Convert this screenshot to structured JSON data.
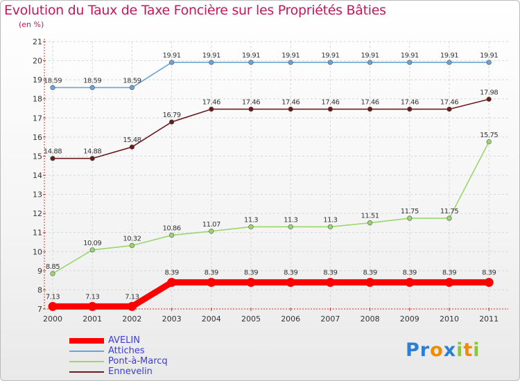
{
  "title": "Evolution du Taux de Taxe Foncière sur les Propriétés Bâties",
  "unit_label": "(en %)",
  "logo": {
    "letters": [
      "P",
      "r",
      "o",
      "x",
      "i",
      "t",
      "i"
    ],
    "colors": [
      "#2a7fd4",
      "#2a7fd4",
      "#f08a00",
      "#2a7fd4",
      "#8cc63f",
      "#f08a00",
      "#8cc63f"
    ]
  },
  "chart_data": {
    "type": "line",
    "x": [
      "2000",
      "2001",
      "2002",
      "2003",
      "2004",
      "2005",
      "2006",
      "2007",
      "2008",
      "2009",
      "2010",
      "2011"
    ],
    "ylim": [
      7,
      21
    ],
    "yticks": [
      7,
      8,
      9,
      10,
      11,
      12,
      13,
      14,
      15,
      16,
      17,
      18,
      19,
      20,
      21
    ],
    "grid": true,
    "legend": "bottom-left",
    "series": [
      {
        "name": "AVELIN",
        "color": "#ff0000",
        "values": [
          7.13,
          7.13,
          7.13,
          8.39,
          8.39,
          8.39,
          8.39,
          8.39,
          8.39,
          8.39,
          8.39,
          8.39
        ],
        "labels": [
          "7.13",
          "7.13",
          "7.13",
          "8.39",
          "8.39",
          "8.39",
          "8.39",
          "8.39",
          "8.39",
          "8.39",
          "8.39",
          "8.39"
        ]
      },
      {
        "name": "Attiches",
        "color": "#6aa3d4",
        "values": [
          18.59,
          18.59,
          18.59,
          19.91,
          19.91,
          19.91,
          19.91,
          19.91,
          19.91,
          19.91,
          19.91,
          19.91
        ],
        "labels": [
          "18.59",
          "18.59",
          "18.59",
          "19.91",
          "19.91",
          "19.91",
          "19.91",
          "19.91",
          "19.91",
          "19.91",
          "19.91",
          "19.91"
        ]
      },
      {
        "name": "Pont-à-Marcq",
        "color": "#9ad66b",
        "values": [
          8.85,
          10.09,
          10.32,
          10.86,
          11.07,
          11.3,
          11.3,
          11.3,
          11.51,
          11.75,
          11.75,
          15.75
        ],
        "labels": [
          "8.85",
          "10.09",
          "10.32",
          "10.86",
          "11.07",
          "11.3",
          "11.3",
          "11.3",
          "11.51",
          "11.75",
          "11.75",
          "15.75"
        ]
      },
      {
        "name": "Ennevelin",
        "color": "#6b1a1a",
        "values": [
          14.88,
          14.88,
          15.48,
          16.79,
          17.46,
          17.46,
          17.46,
          17.46,
          17.46,
          17.46,
          17.46,
          17.98
        ],
        "labels": [
          "14.88",
          "14.88",
          "15.48",
          "16.79",
          "17.46",
          "17.46",
          "17.46",
          "17.46",
          "17.46",
          "17.46",
          "17.46",
          "17.98"
        ]
      }
    ]
  }
}
